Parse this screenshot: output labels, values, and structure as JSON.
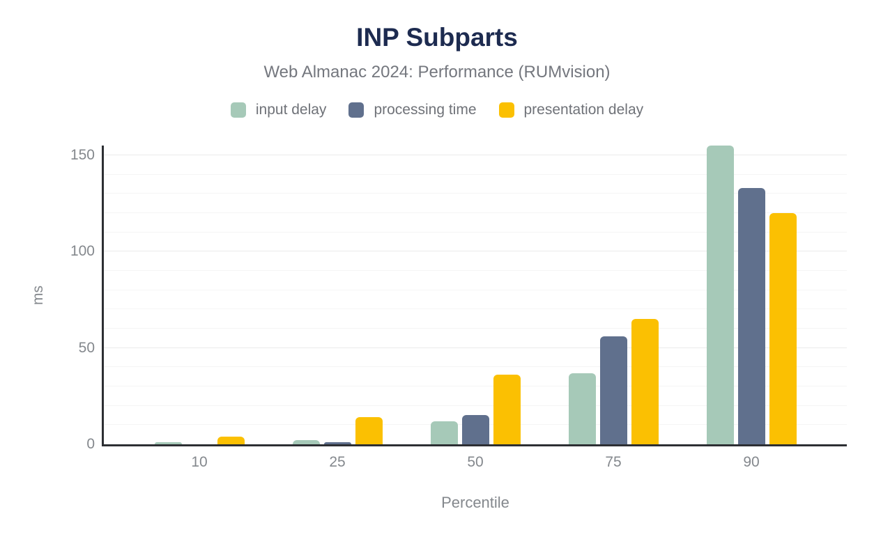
{
  "chart_data": {
    "type": "bar",
    "title": "INP Subparts",
    "subtitle": "Web Almanac 2024: Performance (RUMvision)",
    "categories": [
      "10",
      "25",
      "50",
      "75",
      "90"
    ],
    "series": [
      {
        "name": "input delay",
        "color": "#a6c9b8",
        "values": [
          1,
          2,
          12,
          37,
          155
        ]
      },
      {
        "name": "processing time",
        "color": "#60708d",
        "values": [
          0,
          1,
          15,
          56,
          133
        ]
      },
      {
        "name": "presentation delay",
        "color": "#fbc002",
        "values": [
          4,
          14,
          36,
          65,
          120
        ]
      }
    ],
    "xlabel": "Percentile",
    "ylabel": "ms",
    "yticks": [
      0,
      50,
      100,
      150
    ],
    "ylim": [
      0,
      155
    ],
    "grid": {
      "on": true,
      "minor_step": 10,
      "major_step": 50
    },
    "legend_position": "top"
  },
  "colors": {
    "title_text": "#1d2b50",
    "subtitle_text": "#74777e",
    "axis_line": "#2d2f33",
    "tick_label": "#84888d",
    "gridline_minor": "#f5f5f5",
    "gridline_major": "#ebebeb",
    "background": "#ffffff"
  }
}
